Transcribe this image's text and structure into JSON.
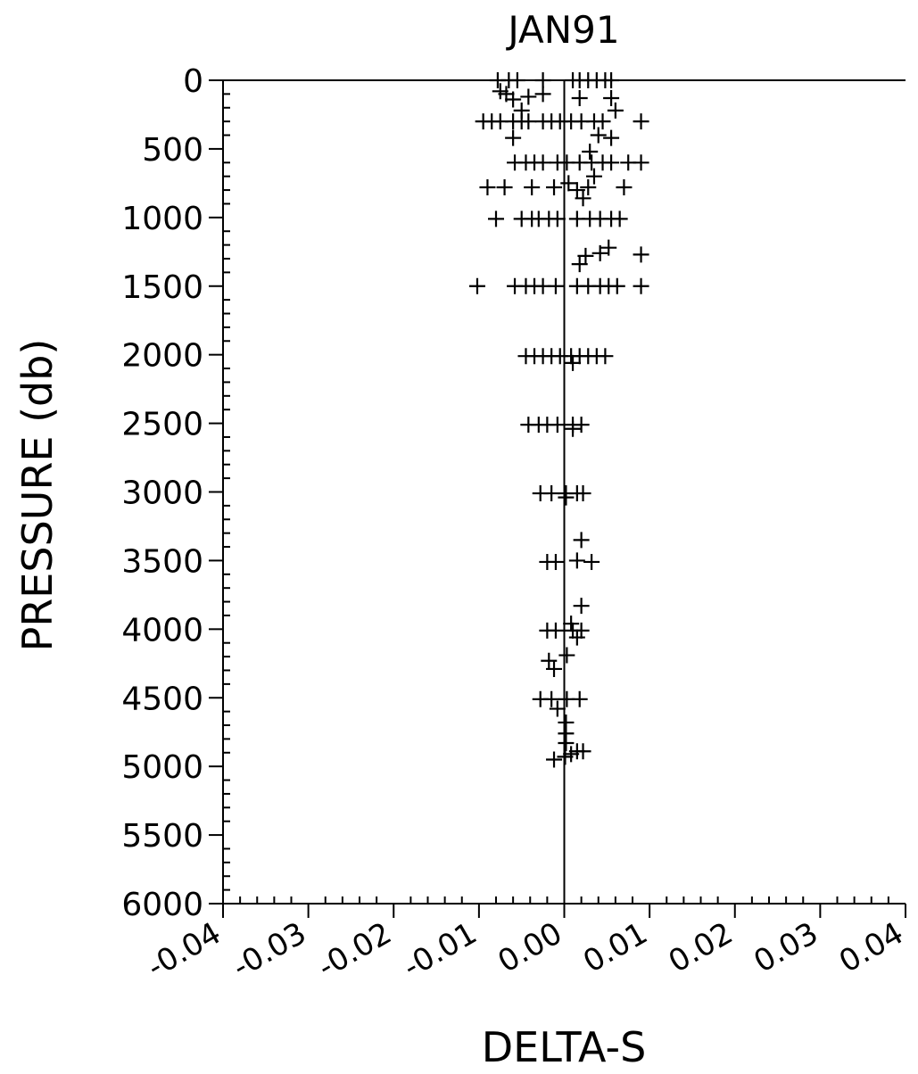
{
  "chart_data": {
    "type": "scatter",
    "title": "JAN91",
    "xlabel": "DELTA-S",
    "ylabel": "PRESSURE (db)",
    "xlim": [
      -0.04,
      0.04
    ],
    "ylim": [
      6000,
      0
    ],
    "y_inverted": true,
    "xticks": [
      "-0.04",
      "-0.03",
      "-0.02",
      "-0.01",
      "0.00",
      "0.01",
      "0.02",
      "0.03",
      "0.04"
    ],
    "yticks": [
      "0",
      "500",
      "1000",
      "1500",
      "2000",
      "2500",
      "3000",
      "3500",
      "4000",
      "4500",
      "5000",
      "5500",
      "6000"
    ],
    "marker": "+",
    "zero_line": true,
    "points": [
      {
        "x": -0.0078,
        "y": 0
      },
      {
        "x": -0.0065,
        "y": 0
      },
      {
        "x": -0.0055,
        "y": 0
      },
      {
        "x": -0.0025,
        "y": 0
      },
      {
        "x": 0.001,
        "y": 0
      },
      {
        "x": 0.0018,
        "y": 0
      },
      {
        "x": 0.0028,
        "y": 0
      },
      {
        "x": 0.0038,
        "y": 0
      },
      {
        "x": 0.0048,
        "y": 0
      },
      {
        "x": 0.0055,
        "y": 0
      },
      {
        "x": -0.0075,
        "y": 80
      },
      {
        "x": -0.0068,
        "y": 100
      },
      {
        "x": -0.006,
        "y": 140
      },
      {
        "x": -0.0042,
        "y": 120
      },
      {
        "x": -0.0025,
        "y": 100
      },
      {
        "x": 0.0018,
        "y": 130
      },
      {
        "x": 0.0055,
        "y": 130
      },
      {
        "x": -0.005,
        "y": 220
      },
      {
        "x": 0.006,
        "y": 220
      },
      {
        "x": -0.0095,
        "y": 300
      },
      {
        "x": -0.0085,
        "y": 300
      },
      {
        "x": -0.0075,
        "y": 300
      },
      {
        "x": -0.006,
        "y": 300
      },
      {
        "x": -0.005,
        "y": 300
      },
      {
        "x": -0.0042,
        "y": 300
      },
      {
        "x": -0.0025,
        "y": 300
      },
      {
        "x": -0.0015,
        "y": 300
      },
      {
        "x": -0.0005,
        "y": 300
      },
      {
        "x": 0.0008,
        "y": 300
      },
      {
        "x": 0.002,
        "y": 300
      },
      {
        "x": 0.0035,
        "y": 300
      },
      {
        "x": 0.0045,
        "y": 300
      },
      {
        "x": 0.009,
        "y": 300
      },
      {
        "x": -0.006,
        "y": 420
      },
      {
        "x": 0.004,
        "y": 400
      },
      {
        "x": 0.0055,
        "y": 420
      },
      {
        "x": 0.003,
        "y": 520
      },
      {
        "x": -0.0058,
        "y": 600
      },
      {
        "x": -0.0045,
        "y": 600
      },
      {
        "x": -0.0035,
        "y": 600
      },
      {
        "x": -0.0025,
        "y": 600
      },
      {
        "x": -0.0008,
        "y": 600
      },
      {
        "x": 0.0003,
        "y": 600
      },
      {
        "x": 0.0018,
        "y": 600
      },
      {
        "x": 0.0032,
        "y": 600
      },
      {
        "x": 0.0045,
        "y": 600
      },
      {
        "x": 0.0055,
        "y": 600
      },
      {
        "x": 0.0075,
        "y": 600
      },
      {
        "x": 0.009,
        "y": 600
      },
      {
        "x": 0.0035,
        "y": 700
      },
      {
        "x": -0.009,
        "y": 780
      },
      {
        "x": -0.007,
        "y": 780
      },
      {
        "x": -0.0038,
        "y": 780
      },
      {
        "x": -0.0012,
        "y": 780
      },
      {
        "x": 0.0005,
        "y": 750
      },
      {
        "x": 0.0015,
        "y": 800
      },
      {
        "x": 0.0028,
        "y": 780
      },
      {
        "x": 0.007,
        "y": 780
      },
      {
        "x": 0.0022,
        "y": 860
      },
      {
        "x": -0.008,
        "y": 1010
      },
      {
        "x": -0.005,
        "y": 1010
      },
      {
        "x": -0.0038,
        "y": 1010
      },
      {
        "x": -0.003,
        "y": 1010
      },
      {
        "x": -0.0018,
        "y": 1010
      },
      {
        "x": -0.0008,
        "y": 1010
      },
      {
        "x": 0.0015,
        "y": 1010
      },
      {
        "x": 0.003,
        "y": 1010
      },
      {
        "x": 0.0042,
        "y": 1010
      },
      {
        "x": 0.0055,
        "y": 1010
      },
      {
        "x": 0.0065,
        "y": 1010
      },
      {
        "x": 0.0052,
        "y": 1220
      },
      {
        "x": 0.0042,
        "y": 1260
      },
      {
        "x": 0.0025,
        "y": 1280
      },
      {
        "x": 0.009,
        "y": 1270
      },
      {
        "x": 0.0018,
        "y": 1340
      },
      {
        "x": -0.0102,
        "y": 1500
      },
      {
        "x": -0.0058,
        "y": 1500
      },
      {
        "x": -0.0045,
        "y": 1500
      },
      {
        "x": -0.0035,
        "y": 1500
      },
      {
        "x": -0.0025,
        "y": 1500
      },
      {
        "x": -0.001,
        "y": 1500
      },
      {
        "x": 0.0015,
        "y": 1500
      },
      {
        "x": 0.0028,
        "y": 1500
      },
      {
        "x": 0.0042,
        "y": 1500
      },
      {
        "x": 0.0052,
        "y": 1500
      },
      {
        "x": 0.0062,
        "y": 1500
      },
      {
        "x": 0.009,
        "y": 1500
      },
      {
        "x": -0.0045,
        "y": 2010
      },
      {
        "x": -0.0035,
        "y": 2010
      },
      {
        "x": -0.0025,
        "y": 2010
      },
      {
        "x": -0.0015,
        "y": 2010
      },
      {
        "x": -0.0005,
        "y": 2010
      },
      {
        "x": 0.0008,
        "y": 2010
      },
      {
        "x": 0.0018,
        "y": 2010
      },
      {
        "x": 0.0028,
        "y": 2010
      },
      {
        "x": 0.0038,
        "y": 2010
      },
      {
        "x": 0.0048,
        "y": 2010
      },
      {
        "x": 0.001,
        "y": 2060
      },
      {
        "x": -0.0042,
        "y": 2510
      },
      {
        "x": -0.003,
        "y": 2510
      },
      {
        "x": -0.002,
        "y": 2510
      },
      {
        "x": -0.0008,
        "y": 2510
      },
      {
        "x": 0.001,
        "y": 2510
      },
      {
        "x": 0.002,
        "y": 2510
      },
      {
        "x": 0.001,
        "y": 2540
      },
      {
        "x": -0.0028,
        "y": 3010
      },
      {
        "x": -0.0015,
        "y": 3010
      },
      {
        "x": 0.0002,
        "y": 3010
      },
      {
        "x": 0.0015,
        "y": 3010
      },
      {
        "x": 0.0022,
        "y": 3010
      },
      {
        "x": 0.0002,
        "y": 3040
      },
      {
        "x": 0.002,
        "y": 3350
      },
      {
        "x": -0.002,
        "y": 3510
      },
      {
        "x": -0.001,
        "y": 3510
      },
      {
        "x": 0.0015,
        "y": 3500
      },
      {
        "x": 0.0032,
        "y": 3510
      },
      {
        "x": 0.002,
        "y": 3830
      },
      {
        "x": 0.0008,
        "y": 3960
      },
      {
        "x": -0.002,
        "y": 4010
      },
      {
        "x": -0.001,
        "y": 4010
      },
      {
        "x": 0.001,
        "y": 4010
      },
      {
        "x": 0.002,
        "y": 4010
      },
      {
        "x": 0.0015,
        "y": 4060
      },
      {
        "x": 0.0003,
        "y": 4190
      },
      {
        "x": -0.0018,
        "y": 4230
      },
      {
        "x": -0.0012,
        "y": 4290
      },
      {
        "x": -0.0028,
        "y": 4510
      },
      {
        "x": -0.0015,
        "y": 4510
      },
      {
        "x": 0.0003,
        "y": 4510
      },
      {
        "x": 0.0018,
        "y": 4510
      },
      {
        "x": -0.0008,
        "y": 4580
      },
      {
        "x": 0.0002,
        "y": 4680
      },
      {
        "x": 0.0002,
        "y": 4760
      },
      {
        "x": 0.0002,
        "y": 4830
      },
      {
        "x": 0.0015,
        "y": 4890
      },
      {
        "x": 0.0022,
        "y": 4890
      },
      {
        "x": 0.0008,
        "y": 4910
      },
      {
        "x": 0.0001,
        "y": 4930
      },
      {
        "x": -0.0012,
        "y": 4950
      }
    ]
  }
}
